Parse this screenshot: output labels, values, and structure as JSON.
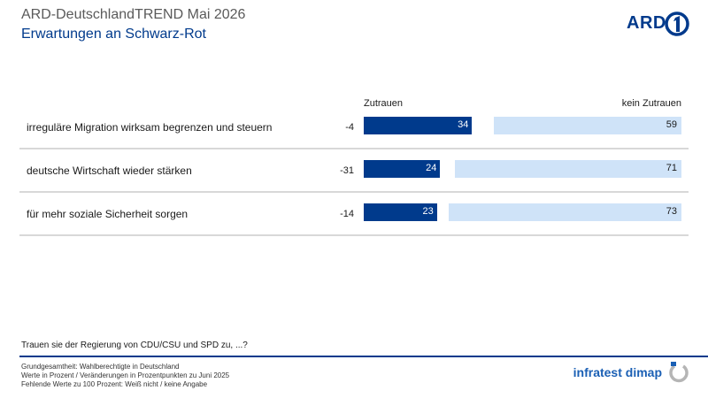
{
  "header": {
    "title": "ARD-DeutschlandTREND Mai 2026",
    "subtitle": "Erwartungen an Schwarz-Rot",
    "logo_text": "ARD"
  },
  "chart_data": {
    "type": "bar",
    "orientation": "horizontal",
    "stacked": false,
    "categories": [
      "irreguläre Migration wirksam begrenzen und steuern",
      "deutsche Wirtschaft wieder stärken",
      "für mehr soziale Sicherheit sorgen"
    ],
    "changes": [
      "-4",
      "-31",
      "-14"
    ],
    "series": [
      {
        "name": "Zutrauen",
        "values": [
          34,
          24,
          23
        ],
        "color": "#003a8c"
      },
      {
        "name": "kein Zutrauen",
        "values": [
          59,
          71,
          73
        ],
        "color": "#cfe3f8"
      }
    ],
    "xlim": [
      0,
      100
    ],
    "grid": false,
    "legend": "top"
  },
  "question": "Trauen sie der Regierung von CDU/CSU und SPD zu, ...?",
  "notes": [
    "Grundgesamtheit: Wahlberechtigte in Deutschland",
    "Werte in Prozent / Veränderungen in Prozentpunkten zu Juni 2025",
    "Fehlende Werte zu 100 Prozent: Weiß nicht / keine Angabe"
  ],
  "footer": {
    "brand": "infratest dimap"
  },
  "colors": {
    "brand_blue": "#003a8c",
    "light_blue": "#cfe3f8",
    "infratest_blue": "#1a5fb4"
  }
}
